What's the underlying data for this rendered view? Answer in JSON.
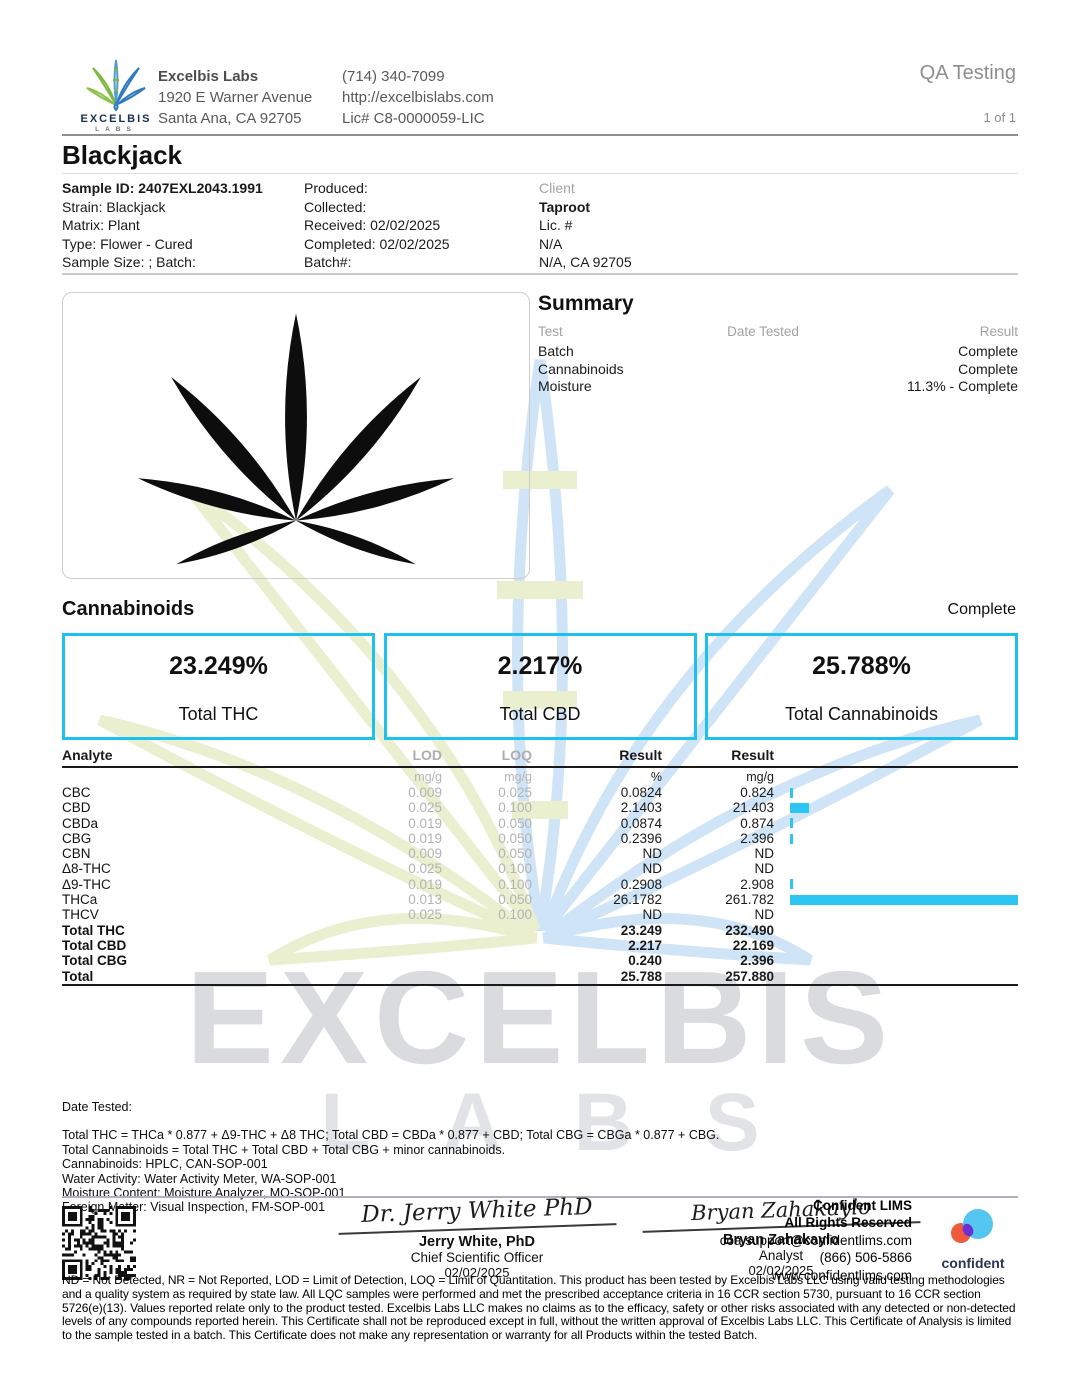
{
  "page": {
    "qa_label": "QA Testing",
    "page_count": "1 of 1"
  },
  "lab": {
    "name": "Excelbis Labs",
    "address1": "1920 E Warner Avenue",
    "address2": "Santa Ana, CA 92705",
    "phone": "(714) 340-7099",
    "website": "http://excelbislabs.com",
    "license": "Lic# C8-0000059-LIC",
    "logo_text": "EXCELBIS",
    "logo_sub": "LABS"
  },
  "sample": {
    "title": "Blackjack",
    "id": "Sample ID: 2407EXL2043.1991",
    "strain": "Strain: Blackjack",
    "matrix": "Matrix: Plant",
    "type": "Type: Flower - Cured",
    "size_batch": "Sample Size: ; Batch:",
    "produced": "Produced:",
    "collected": "Collected:",
    "received": "Received: 02/02/2025",
    "completed": "Completed: 02/02/2025",
    "batch": "Batch#:",
    "client_label": "Client",
    "client_name": "Taproot",
    "client_lic": "Lic. #",
    "client_na": "N/A",
    "client_addr": "N/A, CA 92705"
  },
  "summary": {
    "title": "Summary",
    "col_test": "Test",
    "col_date": "Date Tested",
    "col_result": "Result",
    "rows": [
      {
        "test": "Batch",
        "date": "",
        "result": "Complete"
      },
      {
        "test": "Cannabinoids",
        "date": "",
        "result": "Complete"
      },
      {
        "test": "Moisture",
        "date": "",
        "result": "11.3% - Complete"
      }
    ]
  },
  "cannabinoids": {
    "title": "Cannabinoids",
    "status": "Complete",
    "cards": [
      {
        "value": "23.249%",
        "label": "Total THC"
      },
      {
        "value": "2.217%",
        "label": "Total CBD"
      },
      {
        "value": "25.788%",
        "label": "Total Cannabinoids"
      }
    ]
  },
  "table": {
    "headers": {
      "analyte": "Analyte",
      "lod": "LOD",
      "loq": "LOQ",
      "result_pct": "Result",
      "result_mg": "Result"
    },
    "units": {
      "lod": "mg/g",
      "loq": "mg/g",
      "pct": "%",
      "mg": "mg/g"
    },
    "rows": [
      {
        "analyte": "CBC",
        "lod": "0.009",
        "loq": "0.025",
        "pct": "0.0824",
        "mg": "0.824",
        "bar": 0.824,
        "bold": false
      },
      {
        "analyte": "CBD",
        "lod": "0.025",
        "loq": "0.100",
        "pct": "2.1403",
        "mg": "21.403",
        "bar": 21.403,
        "bold": false
      },
      {
        "analyte": "CBDa",
        "lod": "0.019",
        "loq": "0.050",
        "pct": "0.0874",
        "mg": "0.874",
        "bar": 0.874,
        "bold": false
      },
      {
        "analyte": "CBG",
        "lod": "0.019",
        "loq": "0.050",
        "pct": "0.2396",
        "mg": "2.396",
        "bar": 2.396,
        "bold": false
      },
      {
        "analyte": "CBN",
        "lod": "0.009",
        "loq": "0.050",
        "pct": "ND",
        "mg": "ND",
        "bar": 0,
        "bold": false
      },
      {
        "analyte": "Δ8-THC",
        "lod": "0.025",
        "loq": "0.100",
        "pct": "ND",
        "mg": "ND",
        "bar": 0,
        "bold": false
      },
      {
        "analyte": "Δ9-THC",
        "lod": "0.019",
        "loq": "0.100",
        "pct": "0.2908",
        "mg": "2.908",
        "bar": 2.908,
        "bold": false
      },
      {
        "analyte": "THCa",
        "lod": "0.013",
        "loq": "0.050",
        "pct": "26.1782",
        "mg": "261.782",
        "bar": 261.782,
        "bold": false
      },
      {
        "analyte": "THCV",
        "lod": "0.025",
        "loq": "0.100",
        "pct": "ND",
        "mg": "ND",
        "bar": 0,
        "bold": false
      },
      {
        "analyte": "Total THC",
        "lod": "",
        "loq": "",
        "pct": "23.249",
        "mg": "232.490",
        "bar": 0,
        "bold": true
      },
      {
        "analyte": "Total CBD",
        "lod": "",
        "loq": "",
        "pct": "2.217",
        "mg": "22.169",
        "bar": 0,
        "bold": true
      },
      {
        "analyte": "Total CBG",
        "lod": "",
        "loq": "",
        "pct": "0.240",
        "mg": "2.396",
        "bar": 0,
        "bold": true
      },
      {
        "analyte": "Total",
        "lod": "",
        "loq": "",
        "pct": "25.788",
        "mg": "257.880",
        "bar": 0,
        "bold": true
      }
    ]
  },
  "watermark": {
    "line1": "EXCELBIS",
    "line2": "LABS"
  },
  "footer": {
    "date_tested": "Date Tested:",
    "lines": [
      "Total THC = THCa * 0.877 + Δ9-THC + Δ8 THC; Total CBD = CBDa * 0.877 + CBD; Total CBG = CBGa * 0.877 + CBG.",
      "Total Cannabinoids = Total THC + Total CBD + Total CBG + minor cannabinoids.",
      "Cannabinoids: HPLC, CAN-SOP-001",
      "Water Activity: Water Activity Meter, WA-SOP-001",
      "Moisture Content: Moisture Analyzer, MO-SOP-001",
      "Foreign Matter: Visual Inspection, FM-SOP-001"
    ],
    "sig1": {
      "script": "Dr. Jerry White PhD",
      "name": "Jerry White, PhD",
      "title": "Chief Scientific Officer",
      "date": "02/02/2025"
    },
    "sig2": {
      "script": "Bryan Zahakaylo",
      "name": "Bryan Zahakaylo",
      "title": "Analyst",
      "date": "02/02/2025"
    },
    "lims": {
      "l1": "Confident LIMS",
      "l2": "All Rights Reserved",
      "l3": "coa.support@confidentlims.com",
      "l4": "(866) 506-5866",
      "l5": "www.confidentlims.com",
      "brand": "confident"
    },
    "disclaimer": "ND = Not Detected, NR = Not Reported, LOD = Limit of Detection, LOQ = Limit of Quantitation. This product has been tested by Excelbis Labs LLC using valid testing methodologies and a quality system as required by state law. All LQC samples were performed and met the prescribed acceptance criteria in 16 CCR section 5730, pursuant to 16 CCR section 5726(e)(13). Values reported relate only to the product tested. Excelbis Labs LLC makes no claims as to the efficacy, safety or other risks associated with any detected or non-detected levels of any compounds reported herein. This Certificate shall not be reproduced except in full, without the written approval of Excelbis Labs LLC. This Certificate of Analysis is limited to the sample tested in a batch. This Certificate does not make any representation or warranty for all Products within the tested Batch."
  },
  "colors": {
    "accent_cyan": "#1ec0f0",
    "bar_cyan": "#2bc6f2",
    "logo_green": "#7cb93e",
    "logo_blue": "#2f7bc0",
    "watermark_gray": "#d9dbde"
  }
}
